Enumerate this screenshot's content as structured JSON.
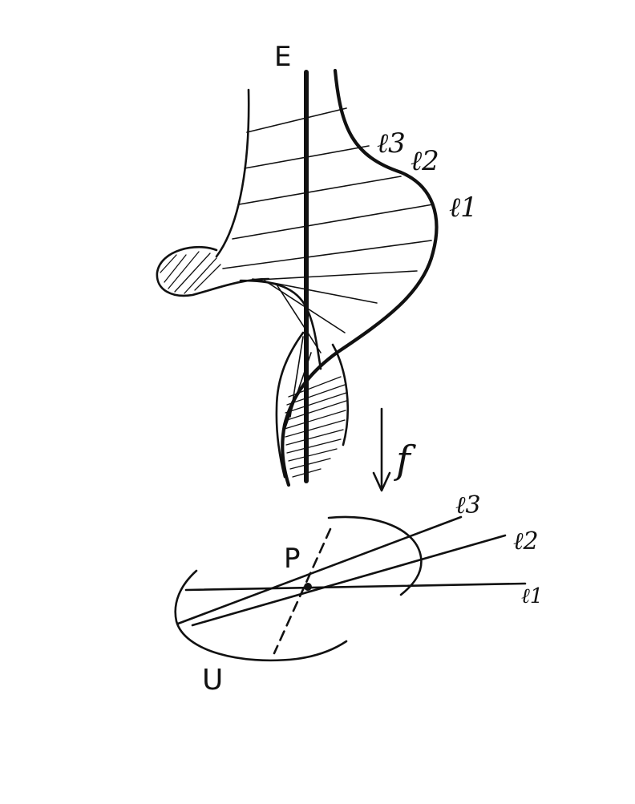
{
  "labels": {
    "total_space": "E",
    "map": "f",
    "base_point": "P",
    "neighborhood": "U",
    "lines_upper": [
      "ℓ3",
      "ℓ2",
      "ℓ1"
    ],
    "lines_lower": [
      "ℓ3",
      "ℓ2",
      "ℓ1"
    ]
  },
  "colors": {
    "ink": "#111111",
    "paper": "#ffffff"
  }
}
